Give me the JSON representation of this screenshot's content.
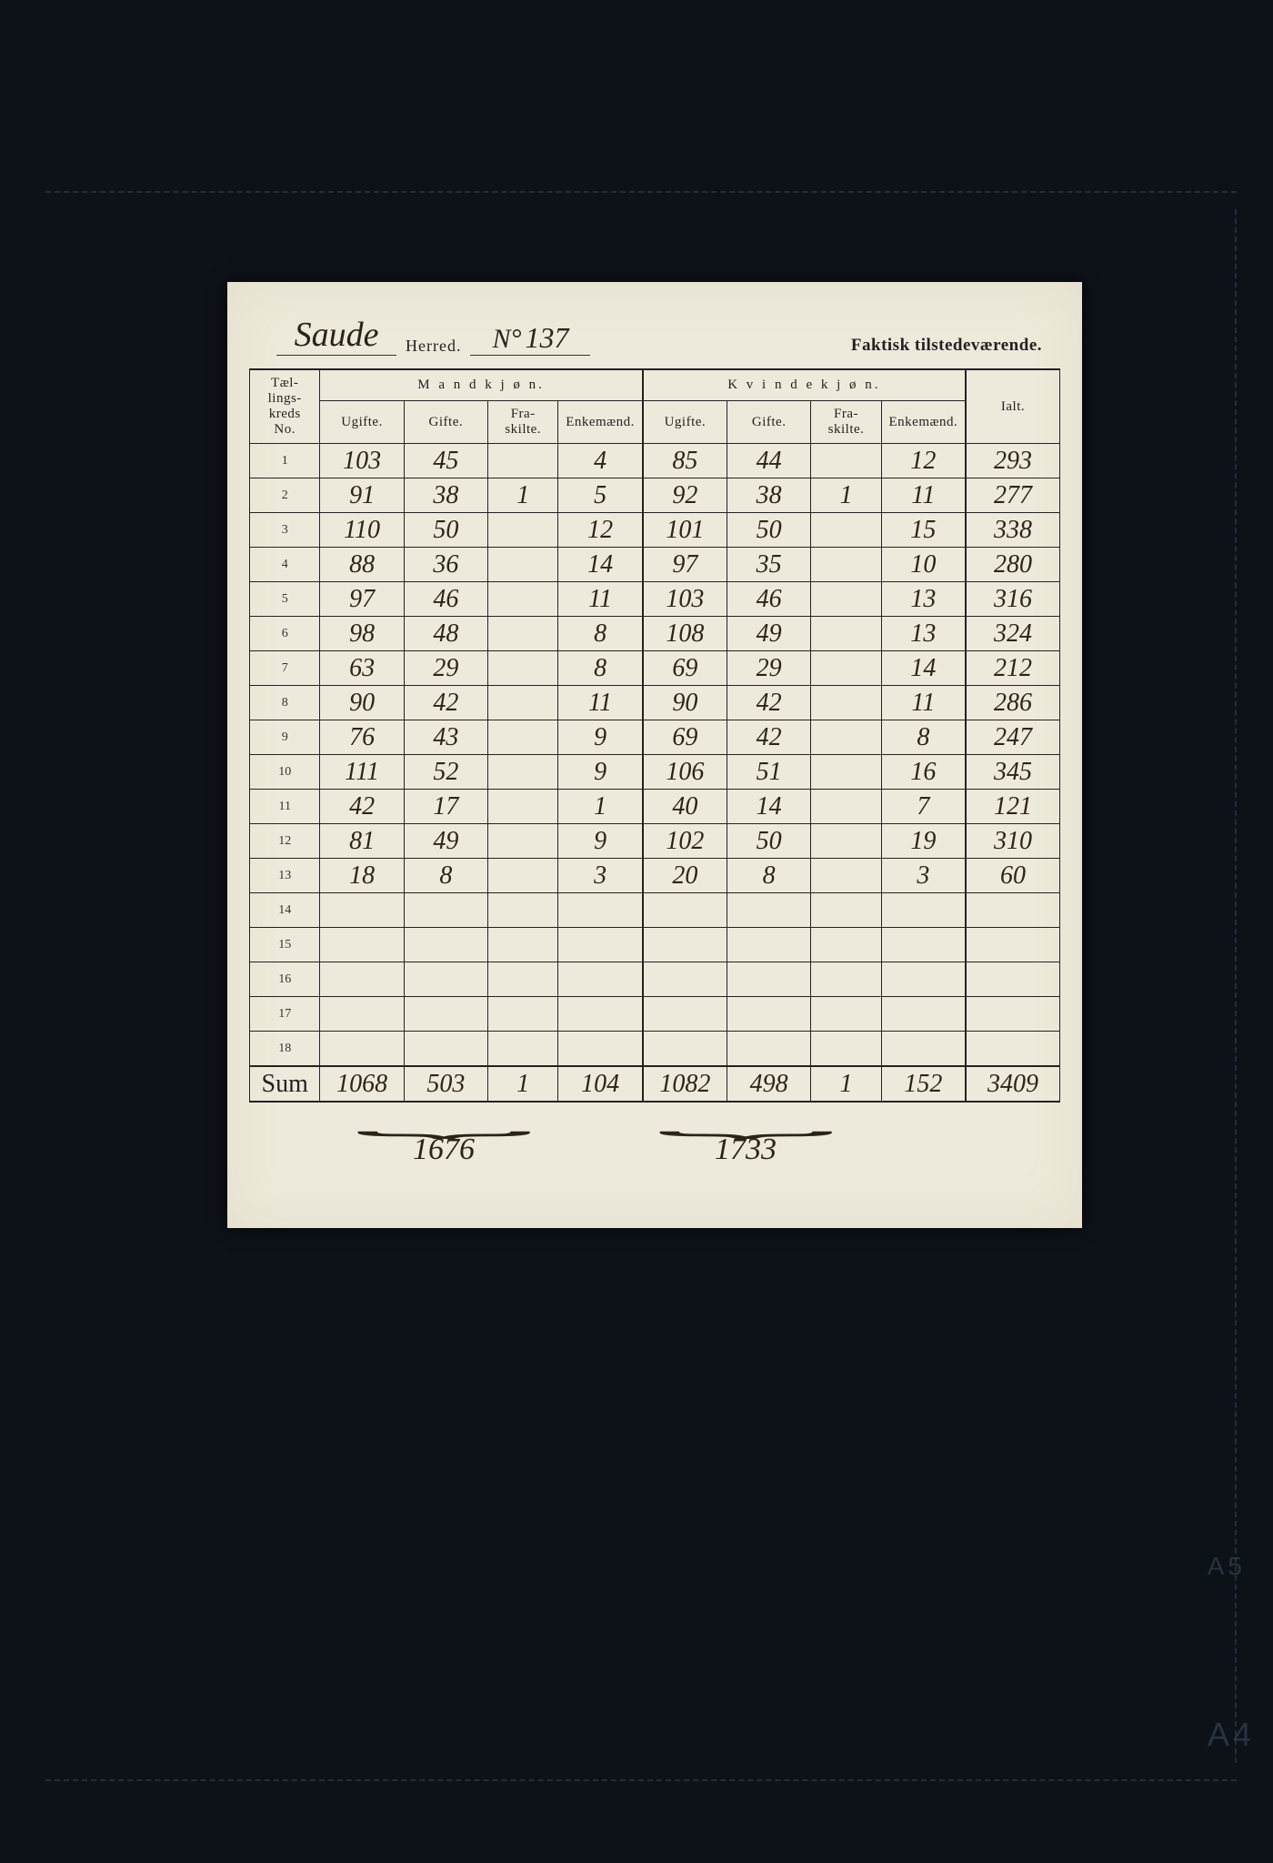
{
  "header": {
    "district_name": "Saude",
    "herred_label": "Herred.",
    "number_label_prefix": "N°",
    "number": "137",
    "right_label": "Faktisk tilstedeværende."
  },
  "table": {
    "col_rowno": "Tæl-\nlings-\nkreds\nNo.",
    "group_male": "M a n d k j ø n.",
    "group_female": "K v i n d e k j ø n.",
    "col_ugifte": "Ugifte.",
    "col_gifte": "Gifte.",
    "col_fraskilte": "Fra-\nskilte.",
    "col_enkemaend": "Enkemænd.",
    "col_ialt": "Ialt.",
    "rows": [
      {
        "no": "1",
        "m_u": "103",
        "m_g": "45",
        "m_f": "",
        "m_e": "4",
        "k_u": "85",
        "k_g": "44",
        "k_f": "",
        "k_e": "12",
        "ialt": "293"
      },
      {
        "no": "2",
        "m_u": "91",
        "m_g": "38",
        "m_f": "1",
        "m_e": "5",
        "k_u": "92",
        "k_g": "38",
        "k_f": "1",
        "k_e": "11",
        "ialt": "277"
      },
      {
        "no": "3",
        "m_u": "110",
        "m_g": "50",
        "m_f": "",
        "m_e": "12",
        "k_u": "101",
        "k_g": "50",
        "k_f": "",
        "k_e": "15",
        "ialt": "338"
      },
      {
        "no": "4",
        "m_u": "88",
        "m_g": "36",
        "m_f": "",
        "m_e": "14",
        "k_u": "97",
        "k_g": "35",
        "k_f": "",
        "k_e": "10",
        "ialt": "280"
      },
      {
        "no": "5",
        "m_u": "97",
        "m_g": "46",
        "m_f": "",
        "m_e": "11",
        "k_u": "103",
        "k_g": "46",
        "k_f": "",
        "k_e": "13",
        "ialt": "316"
      },
      {
        "no": "6",
        "m_u": "98",
        "m_g": "48",
        "m_f": "",
        "m_e": "8",
        "k_u": "108",
        "k_g": "49",
        "k_f": "",
        "k_e": "13",
        "ialt": "324"
      },
      {
        "no": "7",
        "m_u": "63",
        "m_g": "29",
        "m_f": "",
        "m_e": "8",
        "k_u": "69",
        "k_g": "29",
        "k_f": "",
        "k_e": "14",
        "ialt": "212"
      },
      {
        "no": "8",
        "m_u": "90",
        "m_g": "42",
        "m_f": "",
        "m_e": "11",
        "k_u": "90",
        "k_g": "42",
        "k_f": "",
        "k_e": "11",
        "ialt": "286"
      },
      {
        "no": "9",
        "m_u": "76",
        "m_g": "43",
        "m_f": "",
        "m_e": "9",
        "k_u": "69",
        "k_g": "42",
        "k_f": "",
        "k_e": "8",
        "ialt": "247"
      },
      {
        "no": "10",
        "m_u": "111",
        "m_g": "52",
        "m_f": "",
        "m_e": "9",
        "k_u": "106",
        "k_g": "51",
        "k_f": "",
        "k_e": "16",
        "ialt": "345"
      },
      {
        "no": "11",
        "m_u": "42",
        "m_g": "17",
        "m_f": "",
        "m_e": "1",
        "k_u": "40",
        "k_g": "14",
        "k_f": "",
        "k_e": "7",
        "ialt": "121"
      },
      {
        "no": "12",
        "m_u": "81",
        "m_g": "49",
        "m_f": "",
        "m_e": "9",
        "k_u": "102",
        "k_g": "50",
        "k_f": "",
        "k_e": "19",
        "ialt": "310"
      },
      {
        "no": "13",
        "m_u": "18",
        "m_g": "8",
        "m_f": "",
        "m_e": "3",
        "k_u": "20",
        "k_g": "8",
        "k_f": "",
        "k_e": "3",
        "ialt": "60"
      },
      {
        "no": "14",
        "m_u": "",
        "m_g": "",
        "m_f": "",
        "m_e": "",
        "k_u": "",
        "k_g": "",
        "k_f": "",
        "k_e": "",
        "ialt": ""
      },
      {
        "no": "15",
        "m_u": "",
        "m_g": "",
        "m_f": "",
        "m_e": "",
        "k_u": "",
        "k_g": "",
        "k_f": "",
        "k_e": "",
        "ialt": ""
      },
      {
        "no": "16",
        "m_u": "",
        "m_g": "",
        "m_f": "",
        "m_e": "",
        "k_u": "",
        "k_g": "",
        "k_f": "",
        "k_e": "",
        "ialt": ""
      },
      {
        "no": "17",
        "m_u": "",
        "m_g": "",
        "m_f": "",
        "m_e": "",
        "k_u": "",
        "k_g": "",
        "k_f": "",
        "k_e": "",
        "ialt": ""
      },
      {
        "no": "18",
        "m_u": "",
        "m_g": "",
        "m_f": "",
        "m_e": "",
        "k_u": "",
        "k_g": "",
        "k_f": "",
        "k_e": "",
        "ialt": ""
      }
    ],
    "sum_label": "Sum",
    "sum": {
      "m_u": "1068",
      "m_g": "503",
      "m_f": "1",
      "m_e": "104",
      "k_u": "1082",
      "k_g": "498",
      "k_f": "1",
      "k_e": "152",
      "ialt": "3409"
    },
    "male_total": "1676",
    "female_total": "1733"
  },
  "colors": {
    "paper": "#eeeadb",
    "ink": "#2c2416",
    "print": "#222222",
    "background": "#0d1219"
  }
}
